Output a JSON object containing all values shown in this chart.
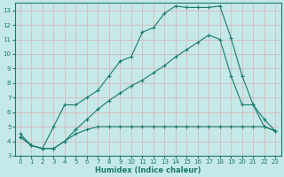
{
  "line1_x": [
    0,
    1,
    2,
    3,
    4,
    5,
    6,
    7,
    8,
    9,
    10,
    11,
    12,
    13,
    14,
    15,
    16,
    17,
    18,
    19,
    20,
    21,
    22,
    23
  ],
  "line1_y": [
    4.5,
    3.7,
    3.5,
    5.0,
    6.5,
    6.5,
    7.0,
    7.5,
    8.5,
    9.5,
    9.8,
    11.5,
    11.8,
    12.8,
    13.3,
    13.2,
    13.2,
    13.2,
    13.3,
    11.1,
    8.5,
    6.5,
    5.0,
    4.7
  ],
  "line2_x": [
    0,
    1,
    2,
    3,
    4,
    5,
    6,
    7,
    8,
    9,
    10,
    11,
    12,
    13,
    14,
    15,
    16,
    17,
    18,
    19,
    20,
    21,
    22,
    23
  ],
  "line2_y": [
    4.3,
    3.7,
    3.5,
    3.5,
    4.0,
    4.5,
    4.8,
    5.0,
    5.0,
    5.0,
    5.0,
    5.0,
    5.0,
    5.0,
    5.0,
    5.0,
    5.0,
    5.0,
    5.0,
    5.0,
    5.0,
    5.0,
    5.0,
    4.7
  ],
  "line3_x": [
    0,
    1,
    2,
    3,
    4,
    5,
    6,
    7,
    8,
    9,
    10,
    11,
    12,
    13,
    14,
    15,
    16,
    17,
    18,
    19,
    20,
    21,
    22,
    23
  ],
  "line3_y": [
    4.3,
    3.7,
    3.5,
    3.5,
    4.0,
    4.8,
    5.5,
    6.2,
    6.8,
    7.3,
    7.8,
    8.2,
    8.7,
    9.2,
    9.8,
    10.3,
    10.8,
    11.3,
    11.0,
    8.5,
    6.5,
    6.5,
    5.5,
    4.7
  ],
  "color": "#1a7a6e",
  "bg_color": "#c5e8e8",
  "grid_color": "#dbb0b0",
  "xlabel": "Humidex (Indice chaleur)",
  "xlim": [
    -0.5,
    23.5
  ],
  "ylim": [
    3.0,
    13.5
  ],
  "yticks": [
    3,
    4,
    5,
    6,
    7,
    8,
    9,
    10,
    11,
    12,
    13
  ],
  "xticks": [
    0,
    1,
    2,
    3,
    4,
    5,
    6,
    7,
    8,
    9,
    10,
    11,
    12,
    13,
    14,
    15,
    16,
    17,
    18,
    19,
    20,
    21,
    22,
    23
  ]
}
